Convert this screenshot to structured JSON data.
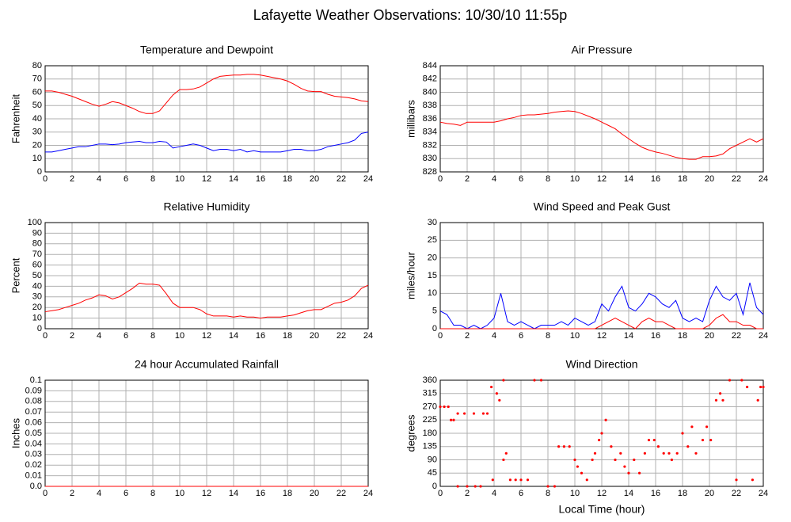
{
  "title": "Lafayette Weather Observations: 10/30/10 11:55p",
  "chart_data": [
    {
      "type": "line",
      "title": "Temperature and Dewpoint",
      "ylabel": "Fahrenheit",
      "grid": true,
      "xlim": [
        0,
        24
      ],
      "xticks": [
        0,
        2,
        4,
        6,
        8,
        10,
        12,
        14,
        16,
        18,
        20,
        22,
        24
      ],
      "ylim": [
        0,
        80
      ],
      "yticks": [
        0,
        10,
        20,
        30,
        40,
        50,
        60,
        70,
        80
      ],
      "x": [
        0,
        0.5,
        1,
        1.5,
        2,
        2.5,
        3,
        3.5,
        4,
        4.5,
        5,
        5.5,
        6,
        6.5,
        7,
        7.5,
        8,
        8.5,
        9,
        9.5,
        10,
        10.5,
        11,
        11.5,
        12,
        12.5,
        13,
        13.5,
        14,
        14.5,
        15,
        15.5,
        16,
        16.5,
        17,
        17.5,
        18,
        18.5,
        19,
        19.5,
        20,
        20.5,
        21,
        21.5,
        22,
        22.5,
        23,
        23.5,
        24
      ],
      "series": [
        {
          "color": "#ff0000",
          "values": [
            61,
            61,
            60,
            58.5,
            57,
            55,
            53,
            51,
            49.5,
            51,
            53,
            52,
            50,
            48,
            45.5,
            44,
            44,
            46,
            52,
            58,
            62,
            62,
            62.5,
            64,
            67,
            70,
            72,
            72.5,
            73,
            73,
            73.5,
            73.5,
            73,
            72,
            71,
            70,
            68.5,
            66,
            63,
            61,
            60.5,
            60.5,
            58.5,
            57,
            56.5,
            56,
            55,
            53.5,
            53
          ]
        },
        {
          "color": "#0000ff",
          "values": [
            15,
            15,
            16,
            17,
            18,
            19,
            19,
            20,
            21,
            21,
            20.5,
            21,
            22,
            22.5,
            23,
            22,
            22,
            23,
            22.5,
            18,
            19,
            20,
            21,
            20,
            18,
            16,
            17,
            17,
            16,
            17,
            15,
            16,
            15,
            15,
            15,
            15,
            16,
            17,
            17,
            16,
            16,
            17,
            19,
            20,
            21,
            22,
            24,
            29,
            30
          ]
        }
      ]
    },
    {
      "type": "line",
      "title": "Air Pressure",
      "ylabel": "millibars",
      "grid": true,
      "xlim": [
        0,
        24
      ],
      "xticks": [
        0,
        2,
        4,
        6,
        8,
        10,
        12,
        14,
        16,
        18,
        20,
        22,
        24
      ],
      "ylim": [
        828,
        844
      ],
      "yticks": [
        828,
        830,
        832,
        834,
        836,
        838,
        840,
        842,
        844
      ],
      "x": [
        0,
        0.5,
        1,
        1.5,
        2,
        2.5,
        3,
        3.5,
        4,
        4.5,
        5,
        5.5,
        6,
        6.5,
        7,
        7.5,
        8,
        8.5,
        9,
        9.5,
        10,
        10.5,
        11,
        11.5,
        12,
        12.5,
        13,
        13.5,
        14,
        14.5,
        15,
        15.5,
        16,
        16.5,
        17,
        17.5,
        18,
        18.5,
        19,
        19.5,
        20,
        20.5,
        21,
        21.5,
        22,
        22.5,
        23,
        23.5,
        24
      ],
      "series": [
        {
          "color": "#ff0000",
          "values": [
            835.5,
            835.3,
            835.2,
            835,
            835.5,
            835.5,
            835.5,
            835.5,
            835.5,
            835.7,
            836,
            836.2,
            836.5,
            836.6,
            836.6,
            836.7,
            836.8,
            837,
            837.1,
            837.2,
            837.1,
            836.8,
            836.4,
            836,
            835.5,
            835,
            834.5,
            833.7,
            833,
            832.3,
            831.7,
            831.3,
            831,
            830.8,
            830.5,
            830.2,
            830,
            829.9,
            829.9,
            830.3,
            830.3,
            830.4,
            830.7,
            831.5,
            832,
            832.5,
            833,
            832.5,
            833
          ]
        }
      ]
    },
    {
      "type": "line",
      "title": "Relative Humidity",
      "ylabel": "Percent",
      "grid": true,
      "xlim": [
        0,
        24
      ],
      "xticks": [
        0,
        2,
        4,
        6,
        8,
        10,
        12,
        14,
        16,
        18,
        20,
        22,
        24
      ],
      "ylim": [
        0,
        100
      ],
      "yticks": [
        0,
        10,
        20,
        30,
        40,
        50,
        60,
        70,
        80,
        90,
        100
      ],
      "x": [
        0,
        0.5,
        1,
        1.5,
        2,
        2.5,
        3,
        3.5,
        4,
        4.5,
        5,
        5.5,
        6,
        6.5,
        7,
        7.5,
        8,
        8.5,
        9,
        9.5,
        10,
        10.5,
        11,
        11.5,
        12,
        12.5,
        13,
        13.5,
        14,
        14.5,
        15,
        15.5,
        16,
        16.5,
        17,
        17.5,
        18,
        18.5,
        19,
        19.5,
        20,
        20.5,
        21,
        21.5,
        22,
        22.5,
        23,
        23.5,
        24
      ],
      "series": [
        {
          "color": "#ff0000",
          "values": [
            16,
            17,
            18,
            20,
            22,
            24,
            27,
            29,
            32,
            31,
            28,
            30,
            34,
            38,
            43,
            42,
            42,
            41,
            33,
            24,
            20,
            20,
            20,
            18,
            14,
            12,
            12,
            12,
            11,
            12,
            11,
            11,
            10,
            11,
            11,
            11,
            12,
            13,
            15,
            17,
            18,
            18,
            21,
            24,
            25,
            27,
            31,
            38,
            41
          ]
        }
      ]
    },
    {
      "type": "line",
      "title": "Wind Speed and Peak Gust",
      "ylabel": "miles/hour",
      "grid": true,
      "xlim": [
        0,
        24
      ],
      "xticks": [
        0,
        2,
        4,
        6,
        8,
        10,
        12,
        14,
        16,
        18,
        20,
        22,
        24
      ],
      "ylim": [
        0,
        30
      ],
      "yticks": [
        0,
        5,
        10,
        15,
        20,
        25,
        30
      ],
      "x": [
        0,
        0.5,
        1,
        1.5,
        2,
        2.5,
        3,
        3.5,
        4,
        4.5,
        5,
        5.5,
        6,
        6.5,
        7,
        7.5,
        8,
        8.5,
        9,
        9.5,
        10,
        10.5,
        11,
        11.5,
        12,
        12.5,
        13,
        13.5,
        14,
        14.5,
        15,
        15.5,
        16,
        16.5,
        17,
        17.5,
        18,
        18.5,
        19,
        19.5,
        20,
        20.5,
        21,
        21.5,
        22,
        22.5,
        23,
        23.5,
        24
      ],
      "series": [
        {
          "color": "#0000ff",
          "values": [
            5,
            4,
            1,
            1,
            0,
            1,
            0,
            1,
            3,
            10,
            2,
            1,
            2,
            1,
            0,
            1,
            1,
            1,
            2,
            1,
            3,
            2,
            1,
            2,
            7,
            5,
            9,
            12,
            6,
            5,
            7,
            10,
            9,
            7,
            6,
            8,
            3,
            2,
            3,
            2,
            8,
            12,
            9,
            8,
            10,
            4,
            13,
            6,
            4
          ]
        },
        {
          "color": "#ff0000",
          "values": [
            0,
            0,
            0,
            0,
            0,
            0,
            0,
            0,
            0,
            0,
            0,
            0,
            0,
            0,
            0,
            0,
            0,
            0,
            0,
            0,
            0,
            0,
            0,
            0,
            1,
            2,
            3,
            2,
            1,
            0,
            2,
            3,
            2,
            2,
            1,
            0,
            0,
            0,
            0,
            0,
            1,
            3,
            4,
            2,
            2,
            1,
            1,
            0,
            0
          ]
        }
      ]
    },
    {
      "type": "line",
      "title": "24 hour Accumulated Rainfall",
      "ylabel": "Inches",
      "grid": true,
      "xlim": [
        0,
        24
      ],
      "xticks": [
        0,
        2,
        4,
        6,
        8,
        10,
        12,
        14,
        16,
        18,
        20,
        22,
        24
      ],
      "ylim": [
        0,
        0.1
      ],
      "yticks": [
        {
          "value": 0,
          "label": "0.0"
        },
        0.01,
        0.02,
        0.03,
        0.04,
        0.05,
        0.06,
        0.07,
        0.08,
        0.09,
        0.1
      ],
      "x": [
        0,
        1,
        2,
        3,
        4,
        5,
        6,
        7,
        8,
        9,
        10,
        11,
        12,
        13,
        14,
        15,
        16,
        17,
        18,
        19,
        20,
        21,
        22,
        23,
        24
      ],
      "series": [
        {
          "color": "#ff0000",
          "values": [
            0,
            0,
            0,
            0,
            0,
            0,
            0,
            0,
            0,
            0,
            0,
            0,
            0,
            0,
            0,
            0,
            0,
            0,
            0,
            0,
            0,
            0,
            0,
            0,
            0
          ]
        }
      ]
    },
    {
      "type": "scatter",
      "title": "Wind Direction",
      "ylabel": "degrees",
      "xlabel": "Local Time (hour)",
      "grid": true,
      "xlim": [
        0,
        24
      ],
      "xticks": [
        0,
        2,
        4,
        6,
        8,
        10,
        12,
        14,
        16,
        18,
        20,
        22,
        24
      ],
      "ylim": [
        0,
        360
      ],
      "yticks": [
        0,
        45,
        90,
        135,
        180,
        225,
        270,
        315,
        360
      ],
      "x": [
        0,
        0.3,
        0.6,
        0.8,
        1,
        1.3,
        1.8,
        2.5,
        3.2,
        3.5,
        1.3,
        2,
        2.6,
        3,
        3.8,
        3.9,
        4.2,
        4.4,
        4.7,
        4.7,
        4.9,
        5.2,
        5.6,
        6,
        6.5,
        7,
        7.5,
        8,
        8.5,
        8.8,
        9.2,
        9.6,
        10,
        10.2,
        10.5,
        10.9,
        11.3,
        11.5,
        11.8,
        12,
        12.3,
        12.7,
        13,
        13.4,
        13.7,
        14,
        14.4,
        14.8,
        15.2,
        15.5,
        15.9,
        16.2,
        16.6,
        17,
        17.2,
        17.6,
        18,
        18.4,
        18.7,
        19,
        19.5,
        19.8,
        20.1,
        20.5,
        20.8,
        21,
        21.5,
        22,
        22.4,
        22.8,
        23.2,
        23.6,
        23.8,
        24
      ],
      "series": [
        {
          "color": "#ff0000",
          "values": [
            270,
            270,
            270,
            225,
            225,
            247,
            247,
            247,
            247,
            247,
            0,
            0,
            0,
            0,
            337,
            22,
            315,
            292,
            360,
            90,
            112,
            22,
            22,
            22,
            22,
            360,
            360,
            0,
            0,
            135,
            135,
            135,
            90,
            67,
            45,
            22,
            90,
            112,
            157,
            180,
            225,
            135,
            90,
            112,
            67,
            45,
            90,
            45,
            112,
            157,
            157,
            135,
            112,
            112,
            90,
            112,
            180,
            135,
            202,
            112,
            157,
            202,
            157,
            292,
            315,
            292,
            360,
            22,
            360,
            337,
            22,
            292,
            337,
            337
          ]
        }
      ]
    }
  ]
}
